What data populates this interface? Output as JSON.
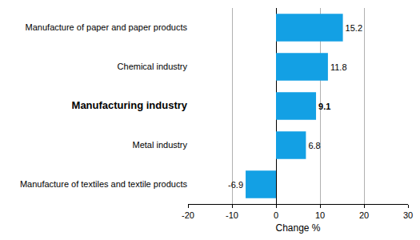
{
  "chart_data": {
    "type": "bar",
    "orientation": "horizontal",
    "categories": [
      "Manufacture of paper and paper products",
      "Chemical industry",
      "Manufacturing industry",
      "Metal industry",
      "Manufacture of textiles and textile products"
    ],
    "values": [
      15.2,
      11.8,
      9.1,
      6.8,
      -6.9
    ],
    "color": "#13a0e4",
    "xlabel": "Change %",
    "xlim": [
      -20,
      30
    ],
    "xticks": [
      -20,
      -10,
      0,
      10,
      20,
      30
    ],
    "grid": true,
    "data_labels": true
  }
}
